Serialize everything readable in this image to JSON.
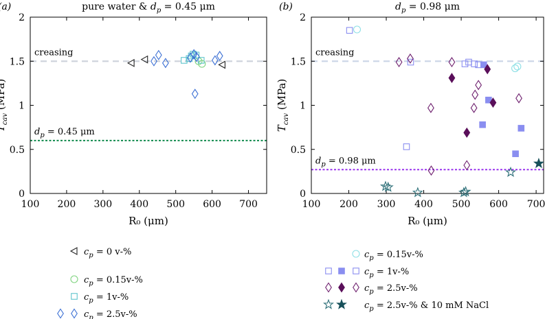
{
  "chart_data": [
    {
      "type": "scatter",
      "panel_label": "(a)",
      "title": "pure water & d_p = 0.45 μm",
      "xlabel": "R₀ (μm)",
      "ylabel": "T_cav (MPa)",
      "xlim": [
        100,
        750
      ],
      "ylim": [
        0,
        2
      ],
      "xticks": [
        "100",
        "200",
        "300",
        "400",
        "500",
        "600",
        "700"
      ],
      "yticks": [
        "0",
        "0.5",
        "1",
        "1.5",
        "2"
      ],
      "grid": false,
      "reference_lines": [
        {
          "label": "creasing",
          "y": 1.5,
          "color": "#cfd4dc",
          "style": "dashed"
        },
        {
          "label": "d_p = 0.45 μm",
          "y": 0.6,
          "color": "#0f8a4c",
          "style": "dotted"
        }
      ],
      "series": [
        {
          "name": "c_p = 0 v-%",
          "marker": "triangle-left",
          "color": "#222222",
          "filled": false,
          "points": [
            [
              378,
              1.48
            ],
            [
              415,
              1.52
            ],
            [
              628,
              1.46
            ]
          ]
        },
        {
          "name": "c_p = 0.15v-%",
          "marker": "circle",
          "color": "#7fd37f",
          "filled": false,
          "points": [
            [
              572,
              1.47
            ],
            [
              563,
              1.5
            ]
          ]
        },
        {
          "name": "c_p = 1v-%",
          "marker": "square",
          "color": "#5fc4cc",
          "filled": false,
          "points": [
            [
              523,
              1.51
            ],
            [
              537,
              1.53
            ],
            [
              543,
              1.56
            ],
            [
              548,
              1.58
            ],
            [
              556,
              1.57
            ],
            [
              570,
              1.51
            ]
          ]
        },
        {
          "name": "c_p = 2.5v-%",
          "marker": "diamond",
          "color": "#3b6fd4",
          "filled": false,
          "points": [
            [
              440,
              1.5
            ],
            [
              453,
              1.57
            ],
            [
              472,
              1.48
            ],
            [
              540,
              1.54
            ],
            [
              550,
              1.58
            ],
            [
              553,
              1.13
            ],
            [
              557,
              1.55
            ],
            [
              608,
              1.51
            ],
            [
              621,
              1.56
            ]
          ]
        }
      ],
      "legend": [
        {
          "label": "c_p = 0 v-%",
          "markers": [
            "triangle-left"
          ]
        },
        {
          "label": "c_p = 0.15v-%",
          "markers": [
            "circle"
          ]
        },
        {
          "label": "c_p = 1v-%",
          "markers": [
            "square"
          ]
        },
        {
          "label": "c_p = 2.5v-%",
          "markers": [
            "diamond",
            "diamond"
          ]
        }
      ]
    },
    {
      "type": "scatter",
      "panel_label": "(b)",
      "title": "d_p = 0.98 μm",
      "xlabel": "R₀ (μm)",
      "ylabel": "T_cav (MPa)",
      "xlim": [
        100,
        720
      ],
      "ylim": [
        0,
        2
      ],
      "xticks": [
        "100",
        "200",
        "300",
        "400",
        "500",
        "600",
        "700"
      ],
      "yticks": [
        "0",
        "0.5",
        "1",
        "1.5",
        "2"
      ],
      "grid": false,
      "reference_lines": [
        {
          "label": "creasing",
          "y": 1.5,
          "color": "#cdd6e8",
          "style": "dashed"
        },
        {
          "label": "d_p = 0.98 μm",
          "y": 0.27,
          "color": "#9a33ee",
          "style": "dotted"
        }
      ],
      "series": [
        {
          "name": "c_p = 0.15v-%",
          "marker": "circle",
          "color": "#8fe0e6",
          "filled": false,
          "points": [
            [
              222,
              1.86
            ],
            [
              644,
              1.42
            ],
            [
              650,
              1.44
            ]
          ]
        },
        {
          "name": "c_p = 1v-% (open)",
          "marker": "square",
          "color": "#8a8ef0",
          "filled": false,
          "points": [
            [
              202,
              1.85
            ],
            [
              354,
              0.53
            ],
            [
              365,
              1.49
            ],
            [
              510,
              1.47
            ],
            [
              520,
              1.49
            ],
            [
              535,
              1.47
            ],
            [
              546,
              1.46
            ]
          ]
        },
        {
          "name": "c_p = 1v-% (filled)",
          "marker": "square",
          "color": "#8a8ef0",
          "filled": true,
          "points": [
            [
              557,
              0.78
            ],
            [
              560,
              1.46
            ],
            [
              573,
              1.06
            ],
            [
              645,
              0.45
            ],
            [
              660,
              0.74
            ]
          ]
        },
        {
          "name": "c_p = 2.5v-% (open)",
          "marker": "diamond",
          "color": "#6e1f6e",
          "filled": false,
          "points": [
            [
              334,
              1.49
            ],
            [
              364,
              1.53
            ],
            [
              419,
              0.97
            ],
            [
              420,
              0.26
            ],
            [
              475,
              1.49
            ],
            [
              515,
              0.32
            ],
            [
              534,
              0.97
            ],
            [
              537,
              1.12
            ],
            [
              546,
              1.23
            ],
            [
              654,
              1.08
            ]
          ]
        },
        {
          "name": "c_p = 2.5v-% (filled)",
          "marker": "diamond",
          "color": "#5a0f5a",
          "filled": true,
          "points": [
            [
              475,
              1.31
            ],
            [
              515,
              0.69
            ],
            [
              570,
              1.41
            ],
            [
              585,
              1.03
            ]
          ]
        },
        {
          "name": "c_p = 2.5v-% & 10 mM NaCl (open)",
          "marker": "star",
          "color": "#2d6f78",
          "filled": false,
          "points": [
            [
              298,
              0.08
            ],
            [
              305,
              0.07
            ],
            [
              384,
              0.01
            ],
            [
              507,
              0.01
            ],
            [
              512,
              0.02
            ],
            [
              632,
              0.24
            ]
          ]
        },
        {
          "name": "c_p = 2.5v-% & 10 mM NaCl (filled)",
          "marker": "star",
          "color": "#17505a",
          "filled": true,
          "points": [
            [
              707,
              0.34
            ]
          ]
        }
      ],
      "legend": [
        {
          "label": "c_p = 0.15v-%",
          "markers": [
            "circle"
          ]
        },
        {
          "label": "c_p = 1v-%",
          "markers": [
            "square",
            "square-filled",
            "square"
          ]
        },
        {
          "label": "c_p = 2.5v-%",
          "markers": [
            "diamond",
            "diamond-filled",
            "diamond"
          ]
        },
        {
          "label": "c_p = 2.5v-% & 10 mM NaCl",
          "markers": [
            "star",
            "star-filled"
          ]
        }
      ]
    }
  ]
}
